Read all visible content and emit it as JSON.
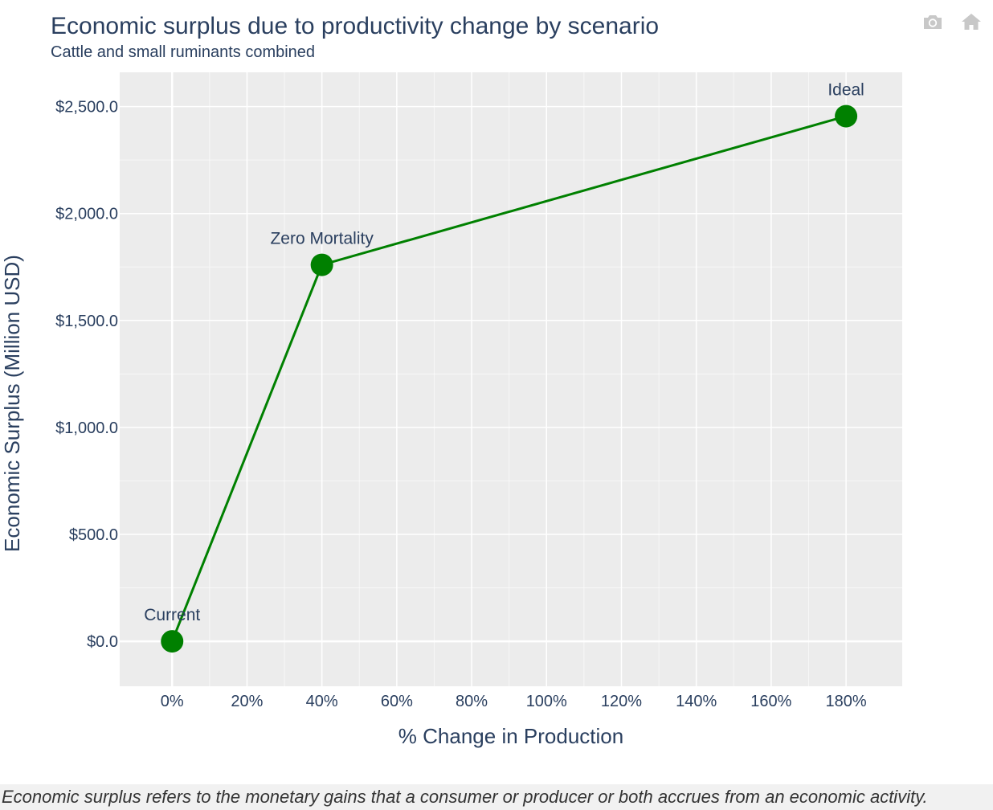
{
  "colors": {
    "plot_bg": "#ececec",
    "grid": "#ffffff",
    "series": "#008000",
    "text": "#2a3f5f",
    "modebar_icon": "#c8c8c8"
  },
  "modebar": {
    "icons": [
      "camera-icon",
      "home-icon"
    ]
  },
  "footnote": "Economic surplus refers to the monetary gains that a consumer or producer or both accrues from an economic activity.",
  "chart_data": {
    "type": "line",
    "title": "Economic surplus due to productivity change by scenario",
    "subtitle": "Cattle and small ruminants combined",
    "xlabel": "% Change in Production",
    "ylabel": "Economic Surplus (Million USD)",
    "xlim": [
      -14,
      195
    ],
    "ylim": [
      -210,
      2660
    ],
    "x_ticks": [
      0,
      20,
      40,
      60,
      80,
      100,
      120,
      140,
      160,
      180
    ],
    "x_tick_labels": [
      "0%",
      "20%",
      "40%",
      "60%",
      "80%",
      "100%",
      "120%",
      "140%",
      "160%",
      "180%"
    ],
    "y_ticks": [
      0,
      500,
      1000,
      1500,
      2000,
      2500
    ],
    "y_tick_labels": [
      "$0.0",
      "$500.0",
      "$1,000.0",
      "$1,500.0",
      "$2,000.0",
      "$2,500.0"
    ],
    "grid": true,
    "mode": "lines+markers+text",
    "series": [
      {
        "points": [
          {
            "x": 0,
            "y": 0,
            "label": "Current"
          },
          {
            "x": 40,
            "y": 1760,
            "label": "Zero Mortality"
          },
          {
            "x": 180,
            "y": 2455,
            "label": "Ideal"
          }
        ]
      }
    ]
  }
}
